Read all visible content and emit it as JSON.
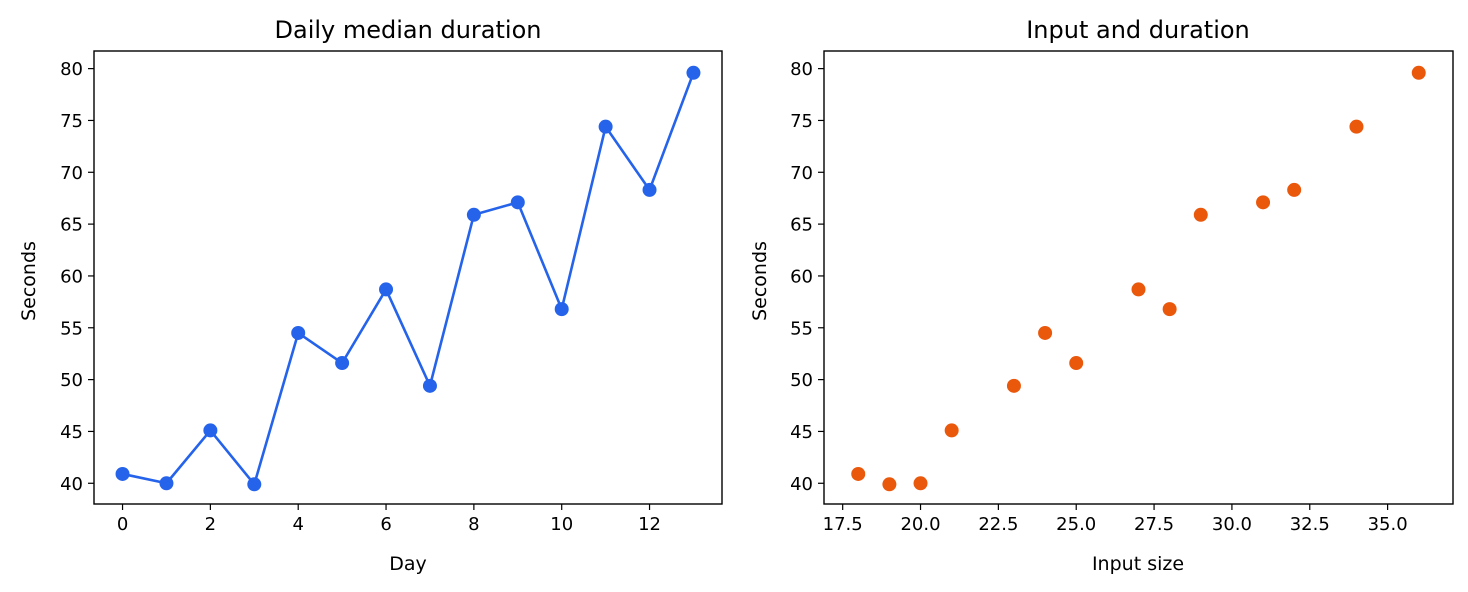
{
  "chart_data": [
    {
      "type": "line",
      "title": "Daily median duration",
      "xlabel": "Day",
      "ylabel": "Seconds",
      "xlim": [
        -0.65,
        13.65
      ],
      "ylim": [
        38,
        81.7
      ],
      "xticks": [
        0,
        2,
        4,
        6,
        8,
        10,
        12
      ],
      "xtick_labels": [
        "0",
        "2",
        "4",
        "6",
        "8",
        "10",
        "12"
      ],
      "yticks": [
        40,
        45,
        50,
        55,
        60,
        65,
        70,
        75,
        80
      ],
      "ytick_labels": [
        "40",
        "45",
        "50",
        "55",
        "60",
        "65",
        "70",
        "75",
        "80"
      ],
      "grid": false,
      "legend": "none",
      "series": [
        {
          "color": "#2563eb",
          "marker": "circle",
          "x": [
            0,
            1,
            2,
            3,
            4,
            5,
            6,
            7,
            8,
            9,
            10,
            11,
            12,
            13
          ],
          "y": [
            40.9,
            40.0,
            45.1,
            39.9,
            54.5,
            51.6,
            58.7,
            49.4,
            65.9,
            67.1,
            56.8,
            74.4,
            68.3,
            79.6
          ]
        }
      ]
    },
    {
      "type": "scatter",
      "title": "Input and duration",
      "xlabel": "Input size",
      "ylabel": "Seconds",
      "xlim": [
        16.9,
        37.1
      ],
      "ylim": [
        38,
        81.7
      ],
      "xticks": [
        17.5,
        20.0,
        22.5,
        25.0,
        27.5,
        30.0,
        32.5,
        35.0
      ],
      "xtick_labels": [
        "17.5",
        "20.0",
        "22.5",
        "25.0",
        "27.5",
        "30.0",
        "32.5",
        "35.0"
      ],
      "yticks": [
        40,
        45,
        50,
        55,
        60,
        65,
        70,
        75,
        80
      ],
      "ytick_labels": [
        "40",
        "45",
        "50",
        "55",
        "60",
        "65",
        "70",
        "75",
        "80"
      ],
      "grid": false,
      "legend": "none",
      "series": [
        {
          "color": "#ea580c",
          "marker": "circle",
          "x": [
            18,
            19,
            20,
            21,
            23,
            24,
            25,
            27,
            28,
            29,
            31,
            32,
            34,
            36
          ],
          "y": [
            40.9,
            39.9,
            40.0,
            45.1,
            49.4,
            54.5,
            51.6,
            58.7,
            56.8,
            65.9,
            67.1,
            68.3,
            74.4,
            79.6
          ]
        }
      ]
    }
  ]
}
